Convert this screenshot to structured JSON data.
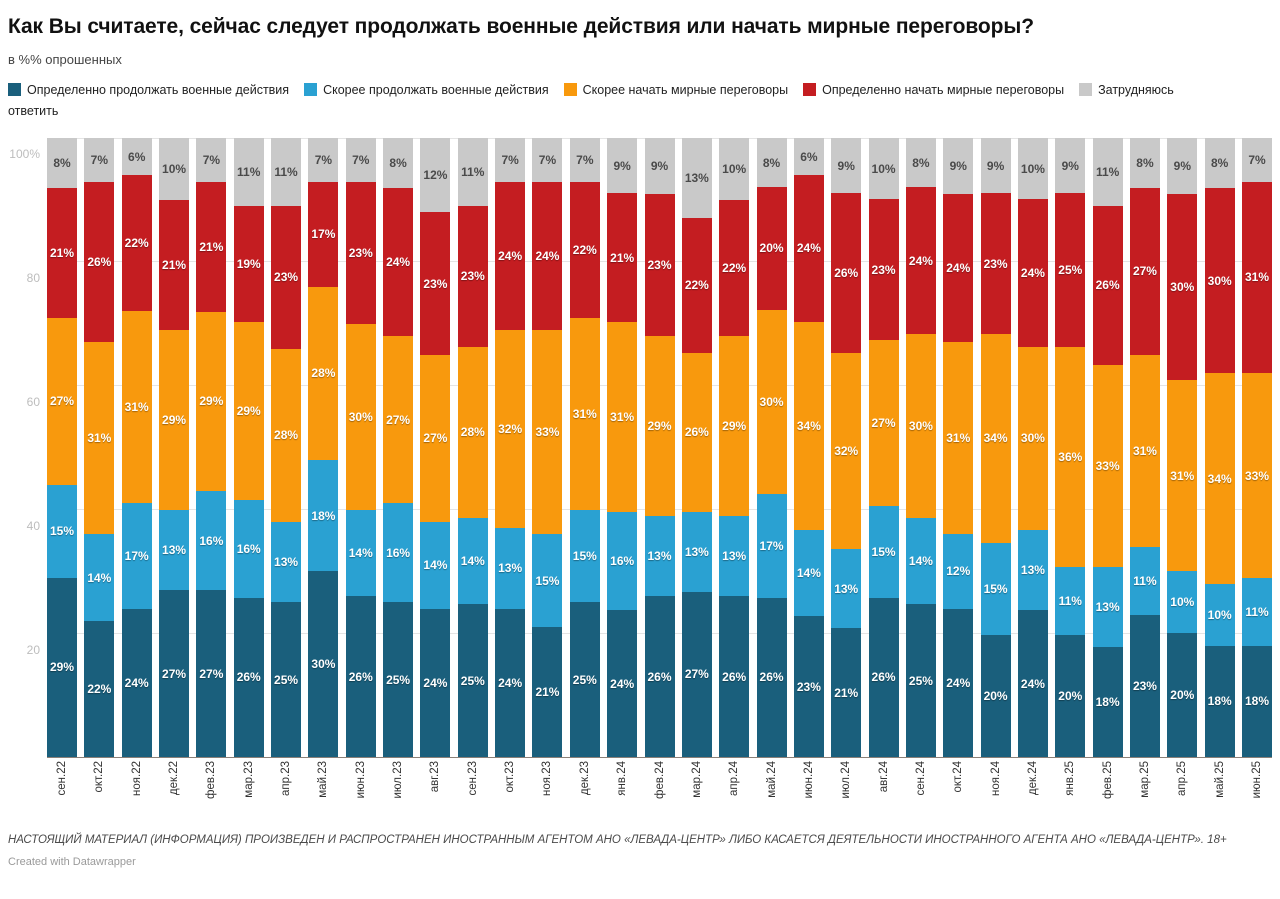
{
  "title": "Как Вы считаете, сейчас следует продолжать военные действия или начать мирные переговоры?",
  "subtitle": "в %% опрошенных",
  "chart_data": {
    "type": "bar",
    "stacked": true,
    "unit": "%",
    "grid": true,
    "legend_position": "top",
    "ylim": [
      0,
      100
    ],
    "yticks": [
      {
        "label": "100%",
        "value": 100
      },
      {
        "label": "80",
        "value": 80
      },
      {
        "label": "60",
        "value": 60
      },
      {
        "label": "40",
        "value": 40
      },
      {
        "label": "20",
        "value": 20
      }
    ],
    "categories": [
      "сен.22",
      "окт.22",
      "ноя.22",
      "дек.22",
      "фев.23",
      "мар.23",
      "апр.23",
      "май.23",
      "июн.23",
      "июл.23",
      "авг.23",
      "сен.23",
      "окт.23",
      "ноя.23",
      "дек.23",
      "янв.24",
      "фев.24",
      "мар.24",
      "апр.24",
      "май.24",
      "июн.24",
      "июл.24",
      "авг.24",
      "сен.24",
      "окт.24",
      "ноя.24",
      "дек.24",
      "янв.25",
      "фев.25",
      "мар.25",
      "апр.25",
      "май.25",
      "июн.25"
    ],
    "series": [
      {
        "key": "definitely-continue",
        "name": "Определенно продолжать военные действия",
        "legend_label": "Определенно продолжать военные действия",
        "color": "#1a5f7c",
        "label_style": "light",
        "values": [
          29,
          22,
          24,
          27,
          27,
          26,
          25,
          30,
          26,
          25,
          24,
          25,
          24,
          21,
          25,
          24,
          26,
          27,
          26,
          26,
          23,
          21,
          26,
          25,
          24,
          20,
          24,
          20,
          18,
          23,
          20,
          18,
          18
        ]
      },
      {
        "key": "rather-continue",
        "name": "Скорее продолжать военные действия",
        "legend_label": "Скорее продолжать военные действия",
        "color": "#2aa1d2",
        "label_style": "light",
        "values": [
          15,
          14,
          17,
          13,
          16,
          16,
          13,
          18,
          14,
          16,
          14,
          14,
          13,
          15,
          15,
          16,
          13,
          13,
          13,
          17,
          14,
          13,
          15,
          14,
          12,
          15,
          13,
          11,
          13,
          11,
          10,
          10,
          11
        ]
      },
      {
        "key": "rather-negotiate",
        "name": "Скорее начать мирные переговоры",
        "legend_label": "Скорее начать мирные переговоры",
        "color": "#f8990d",
        "label_style": "light",
        "values": [
          27,
          31,
          31,
          29,
          29,
          29,
          28,
          28,
          30,
          27,
          27,
          28,
          32,
          33,
          31,
          31,
          29,
          26,
          29,
          30,
          34,
          32,
          27,
          30,
          31,
          34,
          30,
          36,
          33,
          31,
          31,
          34,
          33
        ]
      },
      {
        "key": "definitely-negotiate",
        "name": "Определенно начать мирные переговоры",
        "legend_label": "Определенно начать мирные переговоры",
        "color": "#c41d21",
        "label_style": "light",
        "values": [
          21,
          26,
          22,
          21,
          21,
          19,
          23,
          17,
          23,
          24,
          23,
          23,
          24,
          24,
          22,
          21,
          23,
          22,
          22,
          20,
          24,
          26,
          23,
          24,
          24,
          23,
          24,
          25,
          26,
          27,
          30,
          30,
          31
        ]
      },
      {
        "key": "difficult-to-answer",
        "name": "Затрудняюсь ответить",
        "legend_label": "Затрудняюсь\nответить",
        "color": "#c9c9c9",
        "label_style": "dark",
        "values": [
          8,
          7,
          6,
          10,
          7,
          11,
          11,
          7,
          7,
          8,
          12,
          11,
          7,
          7,
          7,
          9,
          9,
          13,
          10,
          8,
          6,
          9,
          10,
          8,
          9,
          9,
          10,
          9,
          11,
          8,
          9,
          8,
          7
        ]
      }
    ]
  },
  "footer": {
    "disclaimer": "НАСТОЯЩИЙ МАТЕРИАЛ (ИНФОРМАЦИЯ) ПРОИЗВЕДЕН И РАСПРОСТРАНЕН ИНОСТРАННЫМ АГЕНТОМ АНО «ЛЕВАДА-ЦЕНТР» ЛИБО КАСАЕТСЯ ДЕЯТЕЛЬНОСТИ ИНОСТРАННОГО АГЕНТА АНО «ЛЕВАДА-ЦЕНТР». 18+",
    "credit": "Created with Datawrapper"
  }
}
